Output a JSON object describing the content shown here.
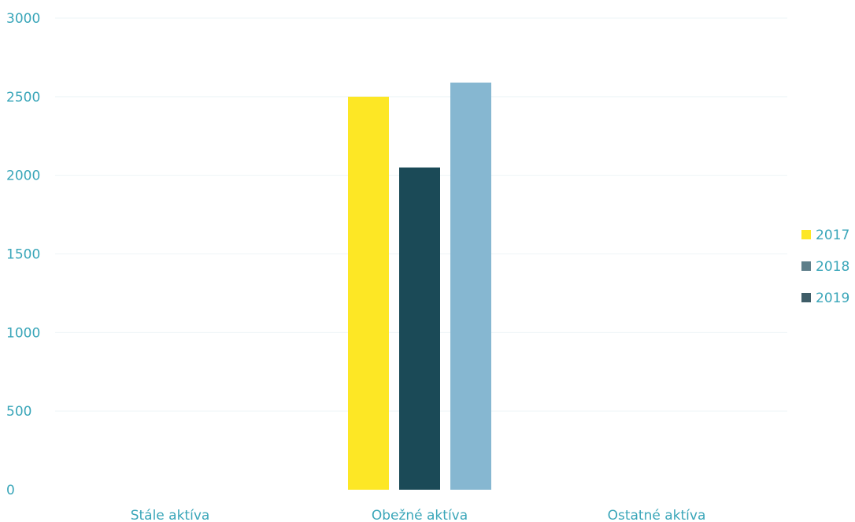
{
  "chart_data": {
    "type": "bar",
    "categories": [
      "Stále aktíva",
      "Obežné aktíva",
      "Ostatné aktíva"
    ],
    "series": [
      {
        "name": "2017",
        "values": [
          0,
          2500,
          0
        ],
        "color": "#fde725"
      },
      {
        "name": "2018",
        "values": [
          0,
          2050,
          0
        ],
        "color": "#1b4a57"
      },
      {
        "name": "2019",
        "values": [
          0,
          2590,
          0
        ],
        "color": "#86b7d1"
      }
    ],
    "yticks": [
      "0",
      "500",
      "1000",
      "1500",
      "2000",
      "2500",
      "3000"
    ],
    "ylim": [
      0,
      3000
    ],
    "grid": true,
    "legend_position": "right",
    "legend_swatch_colors": [
      "#fde725",
      "#5e7f8a",
      "#3f5d68"
    ],
    "text_color": "#3aa6b9"
  }
}
